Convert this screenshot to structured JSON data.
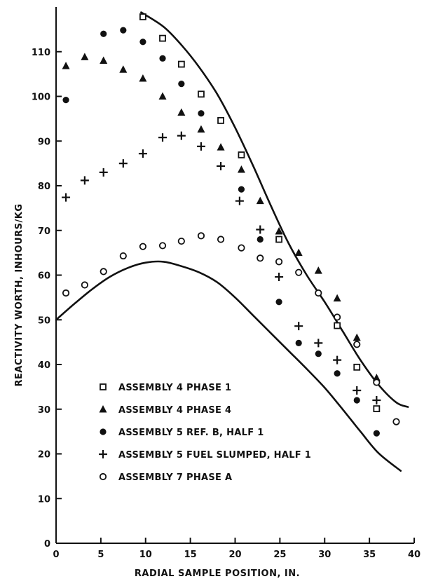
{
  "chart_data": {
    "type": "scatter",
    "xlabel": "RADIAL SAMPLE POSITION, IN.",
    "ylabel": "REACTIVITY WORTH, INHOURS/KG",
    "xlim": [
      0,
      40
    ],
    "ylim": [
      0,
      120
    ],
    "x_ticks": [
      0,
      5,
      10,
      15,
      20,
      25,
      30,
      35,
      40
    ],
    "y_ticks": [
      0,
      10,
      20,
      30,
      40,
      50,
      60,
      70,
      80,
      90,
      100,
      110
    ],
    "grid": false,
    "legend_position": "bottom-left",
    "series": [
      {
        "name": "ASSEMBLY 4 PHASE 1",
        "marker": "open-square",
        "points": [
          [
            9.7,
            117.8
          ],
          [
            11.9,
            113
          ],
          [
            14,
            107.2
          ],
          [
            16.2,
            100.5
          ],
          [
            18.4,
            94.6
          ],
          [
            20.7,
            86.9
          ],
          [
            24.9,
            68
          ],
          [
            31.4,
            48.7
          ],
          [
            33.6,
            39.4
          ],
          [
            35.8,
            30.1
          ]
        ]
      },
      {
        "name": "ASSEMBLY 4 PHASE 4",
        "marker": "filled-triangle",
        "points": [
          [
            1.1,
            106.8
          ],
          [
            3.2,
            108.8
          ],
          [
            5.3,
            108
          ],
          [
            7.5,
            106
          ],
          [
            9.7,
            104
          ],
          [
            11.9,
            100
          ],
          [
            14,
            96.4
          ],
          [
            16.2,
            92.6
          ],
          [
            18.4,
            88.6
          ],
          [
            20.7,
            83.6
          ],
          [
            22.8,
            76.6
          ],
          [
            24.9,
            69.8
          ],
          [
            27.1,
            65
          ],
          [
            29.3,
            61
          ],
          [
            31.4,
            54.8
          ],
          [
            33.6,
            46
          ],
          [
            35.8,
            37
          ]
        ]
      },
      {
        "name": "ASSEMBLY 5 REF. B, HALF 1",
        "marker": "filled-circle",
        "points": [
          [
            1.1,
            99.2
          ],
          [
            5.3,
            114
          ],
          [
            7.5,
            114.8
          ],
          [
            9.7,
            112.2
          ],
          [
            11.9,
            108.5
          ],
          [
            14,
            102.8
          ],
          [
            16.2,
            96.2
          ],
          [
            20.7,
            79.2
          ],
          [
            22.8,
            68
          ],
          [
            24.9,
            54
          ],
          [
            27.1,
            44.8
          ],
          [
            29.3,
            42.4
          ],
          [
            31.4,
            38
          ],
          [
            33.6,
            32
          ],
          [
            35.8,
            24.6
          ]
        ]
      },
      {
        "name": "ASSEMBLY 5 FUEL SLUMPED, HALF 1",
        "marker": "plus",
        "points": [
          [
            1.1,
            77.4
          ],
          [
            3.2,
            81.2
          ],
          [
            5.3,
            83
          ],
          [
            7.5,
            85
          ],
          [
            9.7,
            87.2
          ],
          [
            11.9,
            90.8
          ],
          [
            14,
            91.2
          ],
          [
            16.2,
            88.8
          ],
          [
            18.4,
            84.4
          ],
          [
            20.5,
            76.6
          ],
          [
            22.8,
            70.2
          ],
          [
            24.9,
            59.6
          ],
          [
            27.1,
            48.6
          ],
          [
            29.3,
            44.8
          ],
          [
            31.4,
            41
          ],
          [
            33.6,
            34.2
          ],
          [
            35.8,
            32
          ]
        ]
      },
      {
        "name": "ASSEMBLY 7 PHASE A",
        "marker": "open-circle",
        "points": [
          [
            1.1,
            56
          ],
          [
            3.2,
            57.8
          ],
          [
            5.3,
            60.8
          ],
          [
            7.5,
            64.3
          ],
          [
            9.7,
            66.4
          ],
          [
            11.9,
            66.6
          ],
          [
            14,
            67.6
          ],
          [
            16.2,
            68.8
          ],
          [
            18.4,
            68
          ],
          [
            20.7,
            66.1
          ],
          [
            22.8,
            63.8
          ],
          [
            24.9,
            63
          ],
          [
            27.1,
            60.6
          ],
          [
            29.3,
            56
          ],
          [
            31.4,
            50.6
          ],
          [
            33.6,
            44.5
          ],
          [
            35.8,
            36
          ],
          [
            38,
            27.2
          ]
        ]
      }
    ],
    "curves": [
      {
        "points": [
          [
            9.5,
            118.8
          ],
          [
            12,
            115.6
          ],
          [
            14,
            111.5
          ],
          [
            16,
            106.5
          ],
          [
            18,
            100.5
          ],
          [
            20,
            93
          ],
          [
            22,
            84.5
          ],
          [
            24,
            75.5
          ],
          [
            26,
            67
          ],
          [
            28,
            60
          ],
          [
            30,
            54
          ],
          [
            32,
            47.5
          ],
          [
            34,
            41
          ],
          [
            36,
            35.5
          ],
          [
            38,
            31.5
          ],
          [
            39.3,
            30.5
          ]
        ]
      },
      {
        "points": [
          [
            0,
            50
          ],
          [
            2,
            53.5
          ],
          [
            4,
            56.8
          ],
          [
            6,
            59.6
          ],
          [
            8,
            61.6
          ],
          [
            10,
            62.8
          ],
          [
            12,
            63
          ],
          [
            14,
            62
          ],
          [
            16,
            60.6
          ],
          [
            18,
            58.4
          ],
          [
            20,
            55
          ],
          [
            22,
            51
          ],
          [
            24,
            47
          ],
          [
            26,
            43
          ],
          [
            28,
            39
          ],
          [
            30,
            34.8
          ],
          [
            32,
            30
          ],
          [
            34,
            25
          ],
          [
            36,
            20.2
          ],
          [
            38.5,
            16.2
          ]
        ]
      }
    ]
  }
}
